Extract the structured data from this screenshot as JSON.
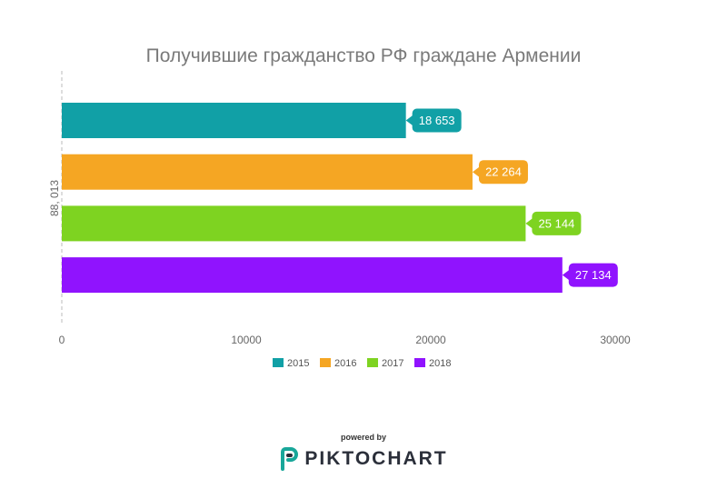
{
  "chart_data": {
    "type": "bar",
    "orientation": "horizontal",
    "title": "Получившие гражданство РФ граждане Армении",
    "category_label": "88, 013",
    "x_ticks": [
      "0",
      "10000",
      "20000",
      "30000"
    ],
    "xlim": [
      0,
      30000
    ],
    "series": [
      {
        "name": "2015",
        "value": 18653,
        "label": "18 653",
        "color": "#11a0a6"
      },
      {
        "name": "2016",
        "value": 22264,
        "label": "22 264",
        "color": "#f5a623"
      },
      {
        "name": "2017",
        "value": 25144,
        "label": "25 144",
        "color": "#7ed321"
      },
      {
        "name": "2018",
        "value": 27134,
        "label": "27 134",
        "color": "#9013fe"
      }
    ],
    "legend_position": "bottom",
    "grid": false
  },
  "footer": {
    "powered_by": "powered by",
    "brand": "PIKTOCHART",
    "brand_color": "#19a79a"
  }
}
